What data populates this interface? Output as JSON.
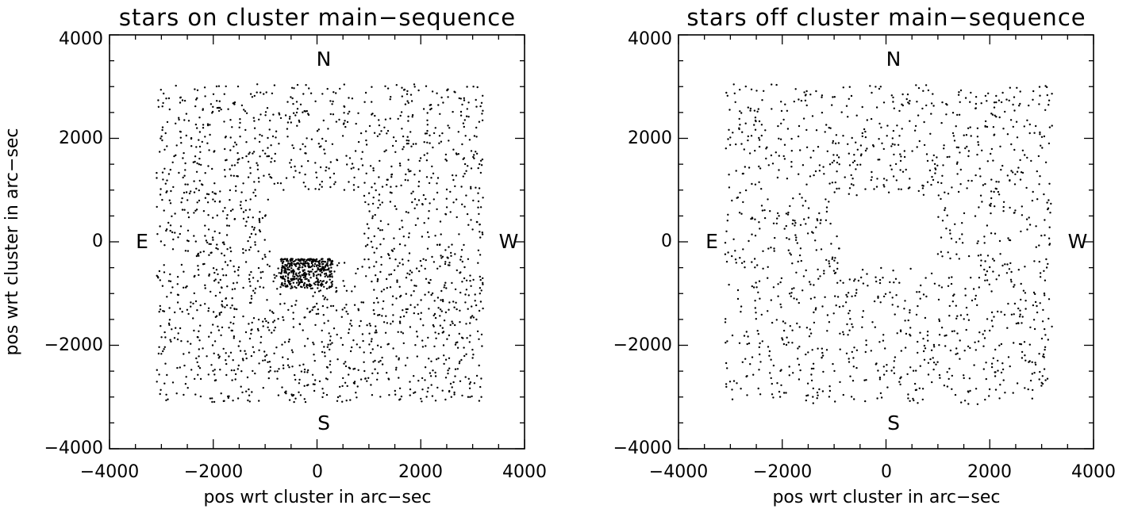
{
  "chart_data": [
    {
      "type": "scatter",
      "title": "stars on cluster main−sequence",
      "xlabel": "pos wrt cluster in arc−sec",
      "ylabel": "pos wrt cluster in arc−sec",
      "xlim": [
        -4000,
        4000
      ],
      "ylim": [
        -4000,
        4000
      ],
      "xticks": [
        -4000,
        -2000,
        0,
        2000,
        4000
      ],
      "yticks": [
        -4000,
        -2000,
        0,
        2000,
        4000
      ],
      "xtick_labels": [
        "−4000",
        "−2000",
        "0",
        "2000",
        "4000"
      ],
      "ytick_labels": [
        "−4000",
        "−2000",
        "0",
        "2000",
        "4000"
      ],
      "grid": false,
      "annotations": [
        {
          "text": "N",
          "x": 0,
          "y": 3600
        },
        {
          "text": "S",
          "x": 0,
          "y": -3500
        },
        {
          "text": "E",
          "x": -3400,
          "y": 0
        },
        {
          "text": "W",
          "x": 3700,
          "y": 0
        }
      ],
      "field_extent": {
        "x": [
          -3100,
          3200
        ],
        "y": [
          -3100,
          3050
        ]
      },
      "central_gap": {
        "x": [
          -900,
          900
        ],
        "y": [
          -400,
          1000
        ]
      },
      "approx_point_count": 1800,
      "dense_clump": {
        "x": [
          -700,
          300
        ],
        "y": [
          -900,
          -330
        ],
        "count": 400
      }
    },
    {
      "type": "scatter",
      "title": "stars off cluster main−sequence",
      "xlabel": "pos wrt cluster in arc−sec",
      "ylabel": "",
      "xlim": [
        -4000,
        4000
      ],
      "ylim": [
        -4000,
        4000
      ],
      "xticks": [
        -4000,
        -2000,
        0,
        2000,
        4000
      ],
      "yticks": [
        -4000,
        -2000,
        0,
        2000,
        4000
      ],
      "xtick_labels": [
        "−4000",
        "−2000",
        "0",
        "2000",
        "4000"
      ],
      "ytick_labels": [
        "−4000",
        "−2000",
        "0",
        "2000",
        "4000"
      ],
      "grid": false,
      "annotations": [
        {
          "text": "N",
          "x": 0,
          "y": 3600
        },
        {
          "text": "S",
          "x": 0,
          "y": -3500
        },
        {
          "text": "E",
          "x": -3400,
          "y": 0
        },
        {
          "text": "W",
          "x": 3700,
          "y": 0
        }
      ],
      "field_extent": {
        "x": [
          -3100,
          3200
        ],
        "y": [
          -3150,
          3050
        ]
      },
      "central_gap": {
        "x": [
          -900,
          1000
        ],
        "y": [
          -500,
          900
        ]
      },
      "approx_point_count": 1300
    }
  ]
}
